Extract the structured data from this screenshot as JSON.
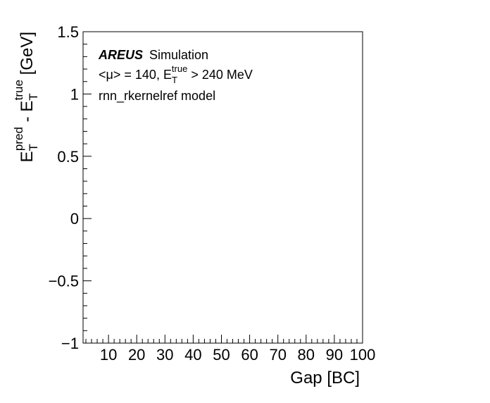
{
  "chart_data": {
    "type": "line",
    "x": [],
    "series": [],
    "xlabel": "Gap [BC]",
    "ylabel": {
      "main": "E",
      "sub1": "T",
      "sup1": "pred",
      "minus": " - E",
      "sub2": "T",
      "sup2": "true",
      "unit": " [GeV]"
    },
    "xlim": [
      1,
      100
    ],
    "ylim": [
      -1,
      1.5
    ],
    "xticks": [
      10,
      20,
      30,
      40,
      50,
      60,
      70,
      80,
      90,
      100
    ],
    "xtick_labels": [
      "10",
      "20",
      "30",
      "40",
      "50",
      "60",
      "70",
      "80",
      "90",
      "100"
    ],
    "yticks": [
      -1,
      -0.5,
      0,
      0.5,
      1,
      1.5
    ],
    "ytick_labels": [
      "−1",
      "−0.5",
      "0",
      "0.5",
      "1",
      "1.5"
    ],
    "x_minor_step": 2,
    "y_minor_step": 0.1,
    "grid": false,
    "annotations": {
      "brand": "AREUS",
      "brand_suffix": " Simulation",
      "mu_line_prefix": "<μ> = 140, E",
      "mu_line_sub": "T",
      "mu_line_sup": "true",
      "mu_line_suffix": " > 240 MeV",
      "model_line": "rnn_rkernelref model"
    }
  }
}
